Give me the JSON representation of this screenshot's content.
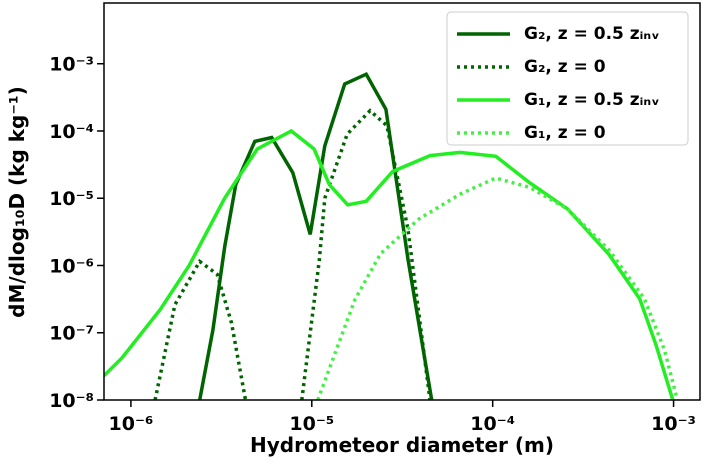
{
  "chart_data": {
    "type": "line",
    "xlabel": "Hydrometeor diameter (m)",
    "ylabel": "dM/dlog₁₀D (kg kg⁻¹)",
    "xscale": "log",
    "yscale": "log",
    "xlim": [
      7.1e-07,
      0.0014
    ],
    "ylim": [
      1e-08,
      0.008
    ],
    "xticks": [
      {
        "value": 1e-06,
        "label": "10⁻⁶"
      },
      {
        "value": 1e-05,
        "label": "10⁻⁵"
      },
      {
        "value": 0.0001,
        "label": "10⁻⁴"
      },
      {
        "value": 0.001,
        "label": "10⁻³"
      }
    ],
    "yticks": [
      {
        "value": 1e-08,
        "label": "10⁻⁸"
      },
      {
        "value": 1e-07,
        "label": "10⁻⁷"
      },
      {
        "value": 1e-06,
        "label": "10⁻⁶"
      },
      {
        "value": 1e-05,
        "label": "10⁻⁵"
      },
      {
        "value": 0.0001,
        "label": "10⁻⁴"
      },
      {
        "value": 0.001,
        "label": "10⁻³"
      }
    ],
    "legend": "upper right",
    "series": [
      {
        "name": "G₂, z = 0.5 zᵢₙᵥ",
        "color": "#006400",
        "style": "solid",
        "x": [
          2.4e-06,
          2.84e-06,
          3.3e-06,
          3.8e-06,
          4.84e-06,
          6e-06,
          7.85e-06,
          9.8e-06,
          1.18e-05,
          1.52e-05,
          2e-05,
          2.57e-05,
          3.4e-05,
          4.6e-05
        ],
        "values": [
          1e-08,
          1.1e-07,
          1.9e-06,
          1.6e-05,
          7e-05,
          8e-05,
          2.4e-05,
          2.9e-06,
          6e-05,
          0.0005,
          0.0007,
          0.00021,
          1.26e-06,
          1e-08
        ]
      },
      {
        "name": "G₂, z = 0",
        "color": "#006400",
        "style": "dotted",
        "x": [
          1.36e-06,
          1.75e-06,
          2.4e-06,
          3e-06,
          3.6e-06,
          4.3e-06,
          6e-06,
          8.8e-06,
          1.1e-05,
          1.18e-05,
          1.57e-05,
          2.1e-05,
          2.6e-05,
          3.4e-05,
          4.5e-05
        ],
        "values": [
          1e-08,
          2.6e-07,
          1.15e-06,
          7.4e-07,
          1.4e-07,
          1e-08,
          null,
          1e-08,
          1.2e-06,
          1e-05,
          9e-05,
          0.0002,
          0.00012,
          3.5e-06,
          1e-08
        ]
      },
      {
        "name": "G₁, z = 0.5 zᵢₙᵥ",
        "color": "#22ee22",
        "style": "solid",
        "x": [
          7.1e-07,
          8.9e-07,
          1.45e-06,
          2.1e-06,
          3.3e-06,
          5e-06,
          7.7e-06,
          1.03e-05,
          1.25e-05,
          1.58e-05,
          2e-05,
          2.8e-05,
          4.5e-05,
          6.6e-05,
          0.000104,
          0.00016,
          0.00026,
          0.00044,
          0.00065,
          0.0008,
          0.00099
        ],
        "values": [
          2.3e-08,
          4.2e-08,
          2.2e-07,
          1e-06,
          1e-05,
          5.4e-05,
          0.0001,
          5.4e-05,
          1.6e-05,
          8e-06,
          9e-06,
          2.5e-05,
          4.3e-05,
          4.8e-05,
          4.2e-05,
          1.7e-05,
          6.9e-06,
          1.45e-06,
          3.2e-07,
          6.6e-08,
          1e-08
        ]
      },
      {
        "name": "G₁, z = 0",
        "color": "#44f044",
        "style": "dotted",
        "x": [
          1.08e-05,
          1.73e-05,
          2.4e-05,
          3.9e-05,
          6.6e-05,
          0.000104,
          0.00016,
          0.00026,
          0.00044,
          0.00069,
          0.00089,
          0.00105
        ],
        "values": [
          1e-08,
          3.1e-07,
          1.5e-06,
          4.9e-06,
          1.15e-05,
          2e-05,
          1.45e-05,
          6.9e-06,
          1.7e-06,
          3.2e-07,
          5.6e-08,
          1e-08
        ]
      }
    ]
  }
}
